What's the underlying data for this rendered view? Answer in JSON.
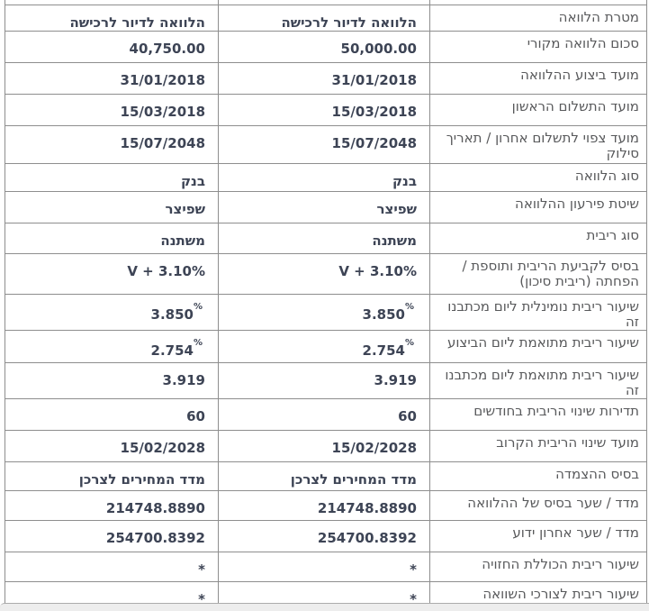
{
  "colors": {
    "value_text": "#3d4455",
    "label_text": "#58595b",
    "border": "#8e8e8e",
    "track_bg": "#ededed"
  },
  "table": {
    "rows": [
      {
        "label": "מטרת הלוואה",
        "values": [
          "הלוואה לדיור לרכישה",
          "הלוואה לדיור לרכישה"
        ]
      },
      {
        "label": "סכום הלוואה מקורי",
        "values": [
          "50,000.00",
          "40,750.00"
        ]
      },
      {
        "label": "מועד ביצוע ההלוואה",
        "values": [
          "31/01/2018",
          "31/01/2018"
        ]
      },
      {
        "label": "מועד התשלום הראשון",
        "values": [
          "15/03/2018",
          "15/03/2018"
        ]
      },
      {
        "label": "מועד צפוי לתשלום אחרון / תאריך סילוק",
        "values": [
          "15/07/2048",
          "15/07/2048"
        ]
      },
      {
        "label": "סוג הלוואה",
        "values": [
          "בנק",
          "בנק"
        ]
      },
      {
        "label": "שיטת פירעון ההלוואה",
        "values": [
          "שפיצר",
          "שפיצר"
        ]
      },
      {
        "label": "סוג ריבית",
        "values": [
          "משתנה",
          "משתנה"
        ]
      },
      {
        "label": "בסיס לקביעת הריבית ותוספת / הפחתה (ריבית סיכון)",
        "values": [
          "V + 3.10%",
          "V + 3.10%"
        ]
      },
      {
        "label": "שיעור ריבית נומינלית ליום מכתבנו זה",
        "values": [
          {
            "t": "3.850",
            "sup": "%"
          },
          {
            "t": "3.850",
            "sup": "%"
          }
        ]
      },
      {
        "label": "שיעור ריבית מתואמת ליום הביצוע",
        "values": [
          {
            "t": "2.754",
            "sup": "%"
          },
          {
            "t": "2.754",
            "sup": "%"
          }
        ]
      },
      {
        "label": "שיעור ריבית מתואמת ליום מכתבנו זה",
        "values": [
          "3.919",
          "3.919"
        ]
      },
      {
        "label": "תדירות שינוי הריבית בחודשים",
        "values": [
          "60",
          "60"
        ]
      },
      {
        "label": "מועד שינוי הריבית הקרוב",
        "values": [
          "15/02/2028",
          "15/02/2028"
        ]
      },
      {
        "label": "בסיס ההצמדה",
        "values": [
          "מדד המחירים לצרכן",
          "מדד המחירים לצרכן"
        ]
      },
      {
        "label": "מדד / שער בסיס של ההלוואה",
        "values": [
          "214748.8890",
          "214748.8890"
        ]
      },
      {
        "label": "מדד / שער אחרון ידוע",
        "values": [
          "254700.8392",
          "254700.8392"
        ]
      },
      {
        "label": "שיעור ריבית הכוללת החזויה",
        "values": [
          "*",
          "*"
        ]
      },
      {
        "label": "שיעור ריבית לצורכי השוואה",
        "values": [
          "*",
          "*"
        ]
      }
    ]
  }
}
